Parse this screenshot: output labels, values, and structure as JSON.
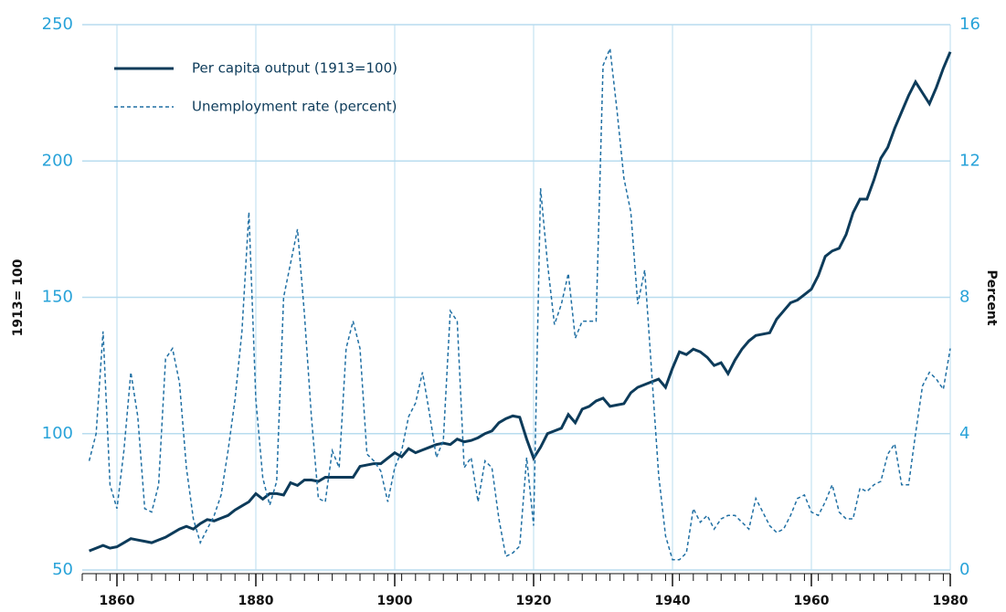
{
  "chart_data": {
    "type": "line",
    "x": [
      1856,
      1857,
      1858,
      1859,
      1860,
      1861,
      1862,
      1863,
      1864,
      1865,
      1866,
      1867,
      1868,
      1869,
      1870,
      1871,
      1872,
      1873,
      1874,
      1875,
      1876,
      1877,
      1878,
      1879,
      1880,
      1881,
      1882,
      1883,
      1884,
      1885,
      1886,
      1887,
      1888,
      1889,
      1890,
      1891,
      1892,
      1893,
      1894,
      1895,
      1896,
      1897,
      1898,
      1899,
      1900,
      1901,
      1902,
      1903,
      1904,
      1905,
      1906,
      1907,
      1908,
      1909,
      1910,
      1911,
      1912,
      1913,
      1914,
      1915,
      1916,
      1917,
      1918,
      1919,
      1920,
      1921,
      1922,
      1923,
      1924,
      1925,
      1926,
      1927,
      1928,
      1929,
      1930,
      1931,
      1932,
      1933,
      1934,
      1935,
      1936,
      1937,
      1938,
      1939,
      1940,
      1941,
      1942,
      1943,
      1944,
      1945,
      1946,
      1947,
      1948,
      1949,
      1950,
      1951,
      1952,
      1953,
      1954,
      1955,
      1956,
      1957,
      1958,
      1959,
      1960,
      1961,
      1962,
      1963,
      1964,
      1965,
      1966,
      1967,
      1968,
      1969,
      1970,
      1971,
      1972,
      1973,
      1974,
      1975,
      1976,
      1977,
      1978,
      1979,
      1980
    ],
    "series": [
      {
        "name": "Per capita output (1913=100)",
        "color": "#0d3b5a",
        "dash": false,
        "values": [
          57,
          58,
          59,
          58,
          58.5,
          60,
          61.5,
          61,
          60.5,
          60,
          61,
          62,
          63.5,
          65,
          66,
          65,
          67,
          68.5,
          68,
          69,
          70,
          72,
          73.5,
          75,
          78,
          76,
          78,
          78,
          77.5,
          82,
          81,
          83,
          83,
          82.5,
          84,
          84,
          84,
          84,
          84,
          88,
          88.5,
          89,
          89,
          91,
          93,
          91.5,
          94.5,
          93,
          94,
          95,
          96,
          96.5,
          96,
          98,
          97,
          97.5,
          98.5,
          100,
          101,
          104,
          105.5,
          106.5,
          106,
          98,
          91,
          95,
          100,
          101,
          102,
          107,
          104,
          109,
          110,
          112,
          113,
          110,
          110.5,
          111,
          115,
          117,
          118,
          119,
          120,
          117,
          124,
          130,
          129,
          131,
          130,
          128,
          125,
          126,
          122,
          127,
          131,
          134,
          136,
          136.5,
          137,
          142,
          145,
          148,
          149,
          151,
          153,
          158,
          165,
          167,
          168,
          173,
          181,
          186,
          186,
          193,
          201,
          205,
          212,
          218,
          224,
          229,
          225,
          221,
          227,
          234,
          240
        ]
      },
      {
        "name": "Unemployment rate (percent)",
        "color": "#1f6fa3",
        "dash": true,
        "axis": "y2",
        "values": [
          3.2,
          4,
          7,
          2.5,
          1.8,
          3.5,
          5.8,
          4.5,
          1.8,
          1.7,
          2.5,
          6.2,
          6.5,
          5.5,
          3,
          1.5,
          0.8,
          1.2,
          1.6,
          2.2,
          3.5,
          5,
          7,
          10.5,
          5,
          2.7,
          1.9,
          2.6,
          8,
          9,
          10,
          7.5,
          4.5,
          2.1,
          2,
          3.5,
          3,
          6.5,
          7.3,
          6.5,
          3.4,
          3.2,
          2.9,
          2,
          3,
          3.5,
          4.5,
          4.9,
          5.8,
          4.6,
          3.3,
          3.8,
          7.6,
          7.3,
          3,
          3.3,
          2,
          3.2,
          3,
          1.5,
          0.4,
          0.5,
          0.7,
          3.3,
          1.3,
          11.2,
          9,
          7.2,
          7.8,
          8.7,
          6.8,
          7.3,
          7.3,
          7.3,
          14.8,
          15.3,
          13.5,
          11.5,
          10.5,
          7.8,
          8.8,
          5.8,
          2.8,
          1,
          0.3,
          0.3,
          0.5,
          1.8,
          1.4,
          1.6,
          1.2,
          1.5,
          1.6,
          1.6,
          1.4,
          1.2,
          2.1,
          1.7,
          1.3,
          1.1,
          1.2,
          1.6,
          2.1,
          2.2,
          1.7,
          1.6,
          2,
          2.5,
          1.7,
          1.5,
          1.5,
          2.4,
          2.3,
          2.5,
          2.6,
          3.4,
          3.7,
          2.5,
          2.5,
          4,
          5.4,
          5.8,
          5.6,
          5.3,
          6.5
        ]
      }
    ],
    "y_label": "1913= 100",
    "y2_label": "Percent",
    "xlim": [
      1855,
      1980
    ],
    "xticks": [
      1860,
      1880,
      1900,
      1920,
      1940,
      1960,
      1980
    ],
    "ylim": [
      50,
      250
    ],
    "yticks": [
      50,
      100,
      150,
      200,
      250
    ],
    "y2lim": [
      0,
      16
    ],
    "y2ticks": [
      0,
      4,
      8,
      12,
      16
    ],
    "grid": true,
    "legend": "upper left"
  }
}
